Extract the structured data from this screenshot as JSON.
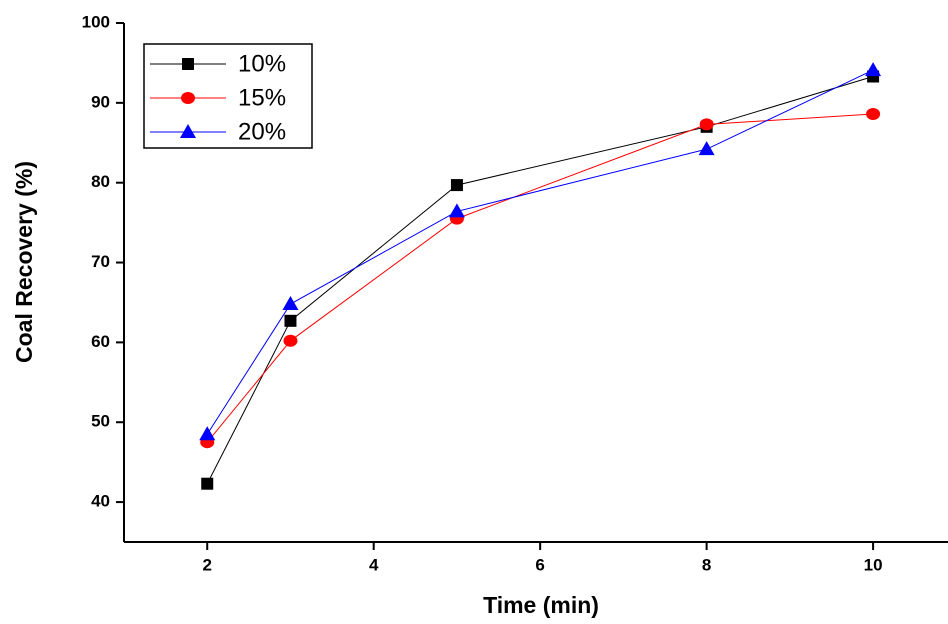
{
  "chart_data": {
    "type": "line",
    "x_label": "Time (min)",
    "y_label": "Coal Recovery (%)",
    "x": [
      2,
      3,
      5,
      8,
      10
    ],
    "series": [
      {
        "name": "10%",
        "color": "#000000",
        "marker": "square",
        "values": [
          42.3,
          62.7,
          79.7,
          87.0,
          93.3
        ]
      },
      {
        "name": "15%",
        "color": "#ff0000",
        "marker": "circle",
        "values": [
          47.5,
          60.2,
          75.5,
          87.3,
          88.6
        ]
      },
      {
        "name": "20%",
        "color": "#0000ff",
        "marker": "triangle",
        "values": [
          48.5,
          64.8,
          76.4,
          84.2,
          94.1
        ]
      }
    ],
    "xlim": [
      1,
      10.9
    ],
    "xticks": [
      2,
      4,
      6,
      8,
      10
    ],
    "ylim": [
      35,
      100
    ],
    "yticks": [
      40,
      50,
      60,
      70,
      80,
      90,
      100
    ],
    "legend": "upper left"
  }
}
